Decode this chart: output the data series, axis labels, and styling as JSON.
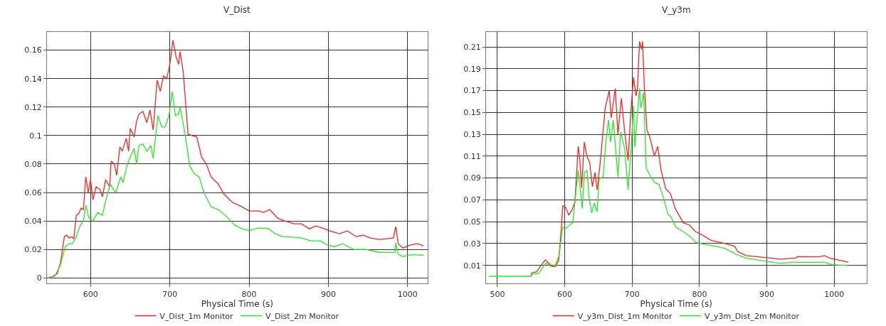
{
  "chart_data": [
    {
      "type": "line",
      "title": "V_Dist",
      "xlabel": "Physical Time (s)",
      "xlim": [
        545,
        1025
      ],
      "xticks": [
        600,
        700,
        800,
        900,
        1000
      ],
      "ylim": [
        -0.004,
        0.173
      ],
      "yticks": [
        0,
        0.02,
        0.04,
        0.06,
        0.08,
        0.1,
        0.12,
        0.14,
        0.16
      ],
      "grid": true,
      "legend": "bottom",
      "marker": "none",
      "line_style": "solid",
      "series": [
        {
          "name": "V_Dist_1m Monitor",
          "color": "#ff2020",
          "x": [
            546,
            552,
            558,
            562,
            567,
            570,
            573,
            576,
            579,
            582,
            585,
            588,
            591,
            594,
            597,
            600,
            603,
            607,
            612,
            615,
            619,
            624,
            626,
            630,
            633,
            637,
            640,
            645,
            648,
            650,
            655,
            658,
            661,
            666,
            671,
            675,
            679,
            684,
            688,
            692,
            696,
            699,
            701,
            704,
            708,
            711,
            713,
            717,
            723,
            728,
            734,
            740,
            746,
            752,
            761,
            768,
            779,
            791,
            800,
            812,
            818,
            826,
            836,
            845,
            857,
            866,
            876,
            884,
            893,
            902,
            914,
            924,
            935,
            944,
            953,
            964,
            982,
            985,
            988,
            994,
            1003,
            1012,
            1020
          ],
          "values": [
            0,
            0.001,
            0.003,
            0.0105,
            0.029,
            0.03,
            0.028,
            0.029,
            0.0275,
            0.044,
            0.045,
            0.049,
            0.048,
            0.071,
            0.06,
            0.069,
            0.055,
            0.064,
            0.062,
            0.057,
            0.069,
            0.064,
            0.082,
            0.08,
            0.072,
            0.092,
            0.089,
            0.098,
            0.089,
            0.105,
            0.099,
            0.11,
            0.115,
            0.117,
            0.109,
            0.118,
            0.104,
            0.139,
            0.131,
            0.142,
            0.14,
            0.147,
            0.154,
            0.167,
            0.155,
            0.15,
            0.159,
            0.144,
            0.101,
            0.1,
            0.099,
            0.085,
            0.08,
            0.071,
            0.066,
            0.059,
            0.053,
            0.05,
            0.047,
            0.047,
            0.046,
            0.048,
            0.042,
            0.04,
            0.038,
            0.038,
            0.0345,
            0.0365,
            0.035,
            0.033,
            0.031,
            0.033,
            0.029,
            0.03,
            0.028,
            0.027,
            0.028,
            0.036,
            0.024,
            0.021,
            0.023,
            0.024,
            0.0225
          ]
        },
        {
          "name": "V_Dist_2m Monitor",
          "color": "#22ee22",
          "x": [
            546,
            555,
            562,
            568,
            573,
            577,
            582,
            587,
            591,
            594,
            598,
            603,
            609,
            615,
            619,
            625,
            629,
            632,
            638,
            641,
            646,
            650,
            655,
            658,
            661,
            666,
            671,
            676,
            679,
            685,
            690,
            694,
            699,
            703,
            707,
            711,
            713,
            719,
            725,
            731,
            737,
            743,
            752,
            761,
            770,
            782,
            791,
            800,
            812,
            824,
            833,
            842,
            854,
            866,
            878,
            890,
            899,
            908,
            918,
            932,
            947,
            964,
            984,
            985,
            988,
            994,
            1003,
            1020
          ],
          "values": [
            0,
            0.0013,
            0.009,
            0.022,
            0.024,
            0.024,
            0.029,
            0.037,
            0.04,
            0.051,
            0.042,
            0.04,
            0.046,
            0.044,
            0.054,
            0.066,
            0.062,
            0.06,
            0.071,
            0.067,
            0.079,
            0.085,
            0.091,
            0.08,
            0.093,
            0.094,
            0.089,
            0.093,
            0.084,
            0.114,
            0.106,
            0.106,
            0.114,
            0.131,
            0.114,
            0.115,
            0.12,
            0.102,
            0.079,
            0.073,
            0.071,
            0.06,
            0.05,
            0.048,
            0.044,
            0.037,
            0.0345,
            0.0333,
            0.035,
            0.0347,
            0.031,
            0.029,
            0.0287,
            0.028,
            0.026,
            0.026,
            0.023,
            0.022,
            0.024,
            0.02,
            0.02,
            0.018,
            0.0178,
            0.0247,
            0.0167,
            0.015,
            0.0163,
            0.016
          ]
        }
      ]
    },
    {
      "type": "line",
      "title": "V_y3m",
      "xlabel": "Physical Time (s)",
      "xlim": [
        483,
        1048
      ],
      "xticks": [
        500,
        600,
        700,
        800,
        900,
        1000
      ],
      "ylim": [
        -0.0067,
        0.224
      ],
      "yticks": [
        0.01,
        0.03,
        0.05,
        0.07,
        0.09,
        0.11,
        0.13,
        0.15,
        0.17,
        0.19,
        0.21
      ],
      "grid": true,
      "legend": "bottom",
      "marker": "none",
      "line_style": "solid",
      "series": [
        {
          "name": "V_y3m_Dist_1m Monitor",
          "color": "#ff2020",
          "x": [
            550,
            551,
            558,
            565,
            571,
            575.6,
            581,
            586,
            591,
            595,
            597,
            601,
            606,
            611,
            615,
            620,
            622,
            625,
            629,
            633,
            637,
            641,
            645,
            648,
            653,
            660,
            666,
            669,
            675,
            679,
            684,
            689,
            694,
            698,
            702,
            706,
            708,
            711,
            714,
            715.5,
            718,
            722,
            727,
            733,
            738,
            743,
            750,
            757,
            764,
            776,
            785,
            794,
            802,
            817,
            838,
            852,
            857,
            869,
            901,
            919,
            943,
            945,
            978,
            986,
            993,
            1021
          ],
          "values": [
            0,
            0.0033,
            0.004,
            0.01,
            0.015,
            0.0124,
            0.0091,
            0.0087,
            0.0146,
            0.045,
            0.0646,
            0.0635,
            0.056,
            0.061,
            0.068,
            0.119,
            0.11,
            0.081,
            0.123,
            0.11,
            0.104,
            0.082,
            0.095,
            0.079,
            0.106,
            0.154,
            0.17,
            0.145,
            0.172,
            0.13,
            0.163,
            0.132,
            0.106,
            0.149,
            0.182,
            0.165,
            0.173,
            0.215,
            0.208,
            0.215,
            0.176,
            0.134,
            0.126,
            0.11,
            0.119,
            0.097,
            0.08,
            0.0755,
            0.062,
            0.049,
            0.047,
            0.041,
            0.0385,
            0.033,
            0.03,
            0.0276,
            0.0226,
            0.019,
            0.017,
            0.0157,
            0.0167,
            0.018,
            0.0178,
            0.0189,
            0.0167,
            0.013
          ]
        },
        {
          "name": "V_y3m_Dist_2m Monitor",
          "color": "#22ee22",
          "x": [
            487,
            550,
            552,
            561,
            572,
            579,
            586,
            591.5,
            597,
            602,
            609,
            612,
            617,
            620,
            623,
            626,
            629,
            633,
            636,
            640,
            644,
            648,
            651,
            657,
            661,
            665,
            668,
            672,
            679,
            683,
            689,
            694,
            699,
            702,
            704,
            711,
            713,
            717,
            721,
            727,
            733,
            740,
            747,
            753,
            758,
            765,
            778,
            787,
            795,
            809.5,
            824,
            838,
            855,
            869,
            890,
            919,
            943,
            986,
            996,
            1021
          ],
          "values": [
            0,
            0,
            0.002,
            0.0026,
            0.0124,
            0.0091,
            0.01,
            0.019,
            0.045,
            0.044,
            0.048,
            0.049,
            0.08,
            0.097,
            0.08,
            0.062,
            0.095,
            0.097,
            0.073,
            0.058,
            0.067,
            0.059,
            0.089,
            0.091,
            0.123,
            0.143,
            0.123,
            0.143,
            0.091,
            0.132,
            0.117,
            0.079,
            0.123,
            0.156,
            0.118,
            0.172,
            0.154,
            0.168,
            0.099,
            0.092,
            0.086,
            0.084,
            0.071,
            0.057,
            0.054,
            0.045,
            0.04,
            0.036,
            0.031,
            0.029,
            0.0276,
            0.0255,
            0.02,
            0.0167,
            0.0146,
            0.012,
            0.0128,
            0.0128,
            0.0107,
            0.0098
          ]
        }
      ]
    }
  ]
}
